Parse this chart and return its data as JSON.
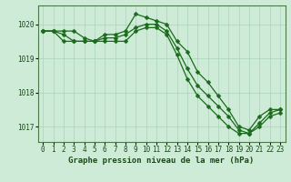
{
  "title": "Graphe pression niveau de la mer (hPa)",
  "background_color": "#ceebd8",
  "grid_color": "#aad4bc",
  "line_color": "#1a6b1a",
  "hours": [
    0,
    1,
    2,
    3,
    4,
    5,
    6,
    7,
    8,
    9,
    10,
    11,
    12,
    13,
    14,
    15,
    16,
    17,
    18,
    19,
    20,
    21,
    22,
    23
  ],
  "line1": [
    1019.8,
    1019.8,
    1019.8,
    1019.8,
    1019.6,
    1019.5,
    1019.7,
    1019.7,
    1019.8,
    1020.3,
    1020.2,
    1020.1,
    1020.0,
    1019.5,
    1019.2,
    1018.6,
    1018.3,
    1017.9,
    1017.5,
    1017.0,
    1016.9,
    1017.3,
    1017.5,
    1017.5
  ],
  "line2": [
    1019.8,
    1019.8,
    1019.7,
    1019.5,
    1019.5,
    1019.5,
    1019.6,
    1019.6,
    1019.7,
    1019.9,
    1020.0,
    1020.0,
    1019.8,
    1019.3,
    1018.7,
    1018.2,
    1017.9,
    1017.6,
    1017.3,
    1016.9,
    1016.8,
    1017.1,
    1017.4,
    1017.5
  ],
  "line3": [
    1019.8,
    1019.8,
    1019.5,
    1019.5,
    1019.5,
    1019.5,
    1019.5,
    1019.5,
    1019.5,
    1019.8,
    1019.9,
    1019.9,
    1019.7,
    1019.1,
    1018.4,
    1017.9,
    1017.6,
    1017.3,
    1017.0,
    1016.8,
    1016.8,
    1017.0,
    1017.3,
    1017.4
  ],
  "ylim_min": 1016.55,
  "ylim_max": 1020.55,
  "yticks": [
    1017,
    1018,
    1019,
    1020
  ],
  "title_fontsize": 6.5,
  "tick_fontsize": 5.5
}
